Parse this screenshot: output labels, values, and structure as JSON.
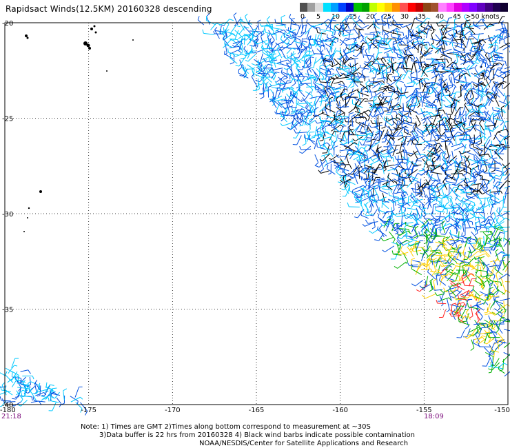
{
  "title": "Rapidsact Winds(12.5KM) 20160328 descending",
  "legend": {
    "colors": [
      "#404040",
      "#808080",
      "#c0c0c0",
      "#00ffff",
      "#40a0ff",
      "#0000ff",
      "#0060a0",
      "#00c000",
      "#008000",
      "#ffff00",
      "#ffc000",
      "#ff8000",
      "#ff4040",
      "#ff0000",
      "#c00000",
      "#804020",
      "#a06040",
      "#ff80ff",
      "#ff00ff",
      "#c000ff",
      "#8000ff",
      "#400080",
      "#200040",
      "#000080",
      "#200040",
      "#100020",
      "#000000"
    ],
    "labels": [
      "0",
      "5",
      "10",
      "15",
      "20",
      "25",
      "30",
      "35",
      "40",
      "45",
      ">50 knots"
    ]
  },
  "axes": {
    "lat_labels": [
      "-20",
      "-25",
      "-30",
      "-35",
      "-40"
    ],
    "lon_labels": [
      "-180",
      "-175",
      "-170",
      "-165",
      "-160",
      "-155",
      "-150"
    ]
  },
  "times": {
    "left": "21:18",
    "right": "18:09"
  },
  "notes": {
    "line1": "Note: 1) Times are GMT 2)Times along bottom correspond to measurement at ~30S",
    "line2": "3)Data buffer is 22 hrs from 20160328 4) Black wind barbs indicate possible contamination",
    "line3": "NOAA/NESDIS/Center for Satellite Applications and Research"
  },
  "map": {
    "lon_range": [
      -180,
      -150
    ],
    "lat_range": [
      -40,
      -20
    ],
    "wind_colors": {
      "light": "#00c8ff",
      "medium": "#0050e0",
      "strong": "#00b000",
      "high": "#ffd000",
      "peak": "#ff2020",
      "flagged": "#000000"
    }
  }
}
